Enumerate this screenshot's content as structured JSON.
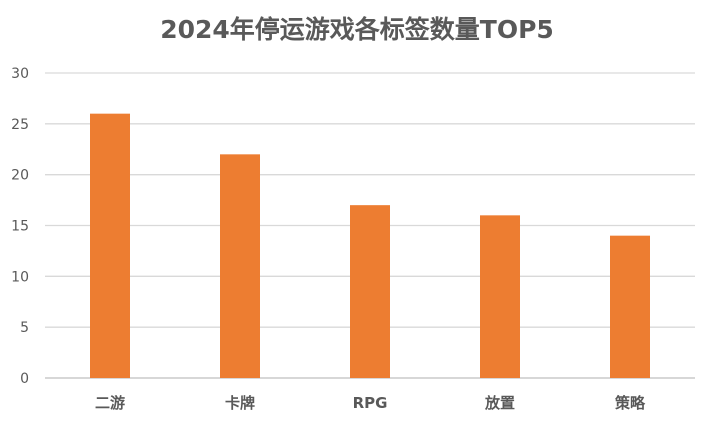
{
  "chart_data": {
    "type": "bar",
    "title": "2024年停运游戏各标签数量TOP5",
    "categories": [
      "二游",
      "卡牌",
      "RPG",
      "放置",
      "策略"
    ],
    "values": [
      26,
      22,
      17,
      16,
      14
    ],
    "ylim": [
      0,
      30
    ],
    "yticks": [
      0,
      5,
      10,
      15,
      20,
      25,
      30
    ],
    "grid": true,
    "legend": "none",
    "colors": {
      "bar": "#ED7D31",
      "grid": "#D9D9D9",
      "axis": "#BFBFBF",
      "text": "#595959"
    }
  }
}
